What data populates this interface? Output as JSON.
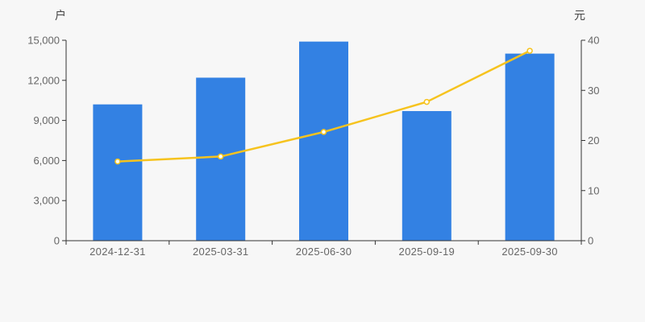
{
  "page": {
    "background": "#f7f7f7"
  },
  "style": {
    "axis_line_color": "#333333",
    "tick_label_color": "#666666",
    "axis_title_color": "#444444",
    "bar_color": "#3381e3",
    "line_color": "#f6c31e",
    "marker_fill": "#fffdf4"
  },
  "chart_data": {
    "type": "bar",
    "subtype": "bar-line-combo-dual-axis",
    "title": "",
    "legend": null,
    "grid": false,
    "categories": [
      "2024-12-31",
      "2025-03-31",
      "2025-06-30",
      "2025-09-19",
      "2025-09-30"
    ],
    "series": [
      {
        "name": "户",
        "type": "bar",
        "axis": "left",
        "color": "#3381e3",
        "values": [
          10200,
          12200,
          14900,
          9700,
          14000
        ]
      },
      {
        "name": "元",
        "type": "line",
        "axis": "right",
        "color": "#f6c31e",
        "marker_fill": "#fffdf4",
        "values": [
          15.8,
          16.8,
          21.7,
          27.7,
          37.9
        ]
      }
    ],
    "left_axis": {
      "title": "户",
      "min": 0,
      "max": 15000,
      "ticks": [
        {
          "value": 0,
          "label": "0"
        },
        {
          "value": 3000,
          "label": "3,000"
        },
        {
          "value": 6000,
          "label": "6,000"
        },
        {
          "value": 9000,
          "label": "9,000"
        },
        {
          "value": 12000,
          "label": "12,000"
        },
        {
          "value": 15000,
          "label": "15,000"
        }
      ]
    },
    "right_axis": {
      "title": "元",
      "min": 0,
      "max": 40,
      "ticks": [
        {
          "value": 0,
          "label": "0"
        },
        {
          "value": 10,
          "label": "10"
        },
        {
          "value": 20,
          "label": "20"
        },
        {
          "value": 30,
          "label": "30"
        },
        {
          "value": 40,
          "label": "40"
        }
      ]
    }
  }
}
